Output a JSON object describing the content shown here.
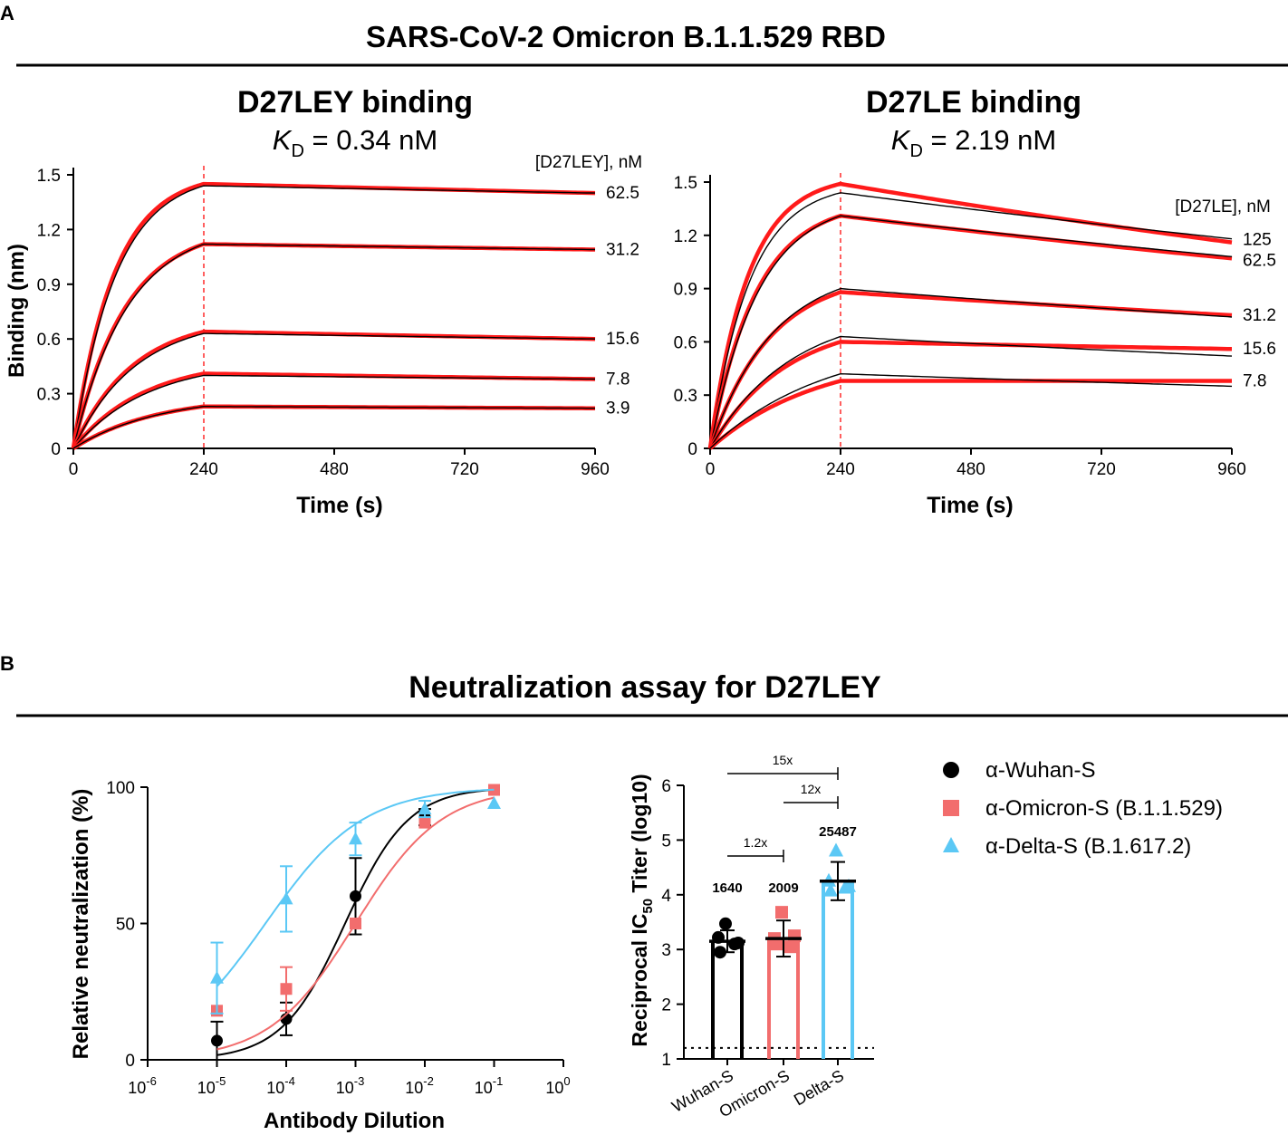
{
  "panel_a": {
    "letter": "A",
    "title": "SARS-CoV-2 Omicron B.1.1.529 RBD"
  },
  "panel_b": {
    "letter": "B",
    "title": "Neutralization assay for D27LEY"
  },
  "colors": {
    "black": "#000000",
    "red_trace": "#ff1a1a",
    "omicron": "#f26d6d",
    "delta": "#5bc8f5",
    "dashed_line": "#ff2a2a"
  },
  "chart_data": [
    {
      "id": "d27ley",
      "type": "line",
      "title": "D27LEY binding",
      "kd_symbol": "K",
      "kd_sub": "D",
      "kd_value": " = 0.34 nM",
      "xlabel": "Time (s)",
      "ylabel": "Binding (nm)",
      "xlim": [
        0,
        960
      ],
      "ylim": [
        0,
        1.5
      ],
      "xticks": [
        0,
        240,
        480,
        720,
        960
      ],
      "yticks": [
        0,
        0.3,
        0.6,
        0.9,
        1.2,
        1.5
      ],
      "ytick_labels": [
        "0",
        "0.3",
        "0.6",
        "0.9",
        "1.2",
        "1.5"
      ],
      "association_end": 240,
      "concentration_header": "[D27LEY],  nM",
      "series": [
        {
          "label": "62.5",
          "peak_measured": 1.45,
          "end_measured": 1.4,
          "peak_fit": 1.44,
          "end_fit": 1.4,
          "tau": 75
        },
        {
          "label": "31.2",
          "peak_measured": 1.12,
          "end_measured": 1.09,
          "peak_fit": 1.12,
          "end_fit": 1.09,
          "tau": 95
        },
        {
          "label": "15.6",
          "peak_measured": 0.64,
          "end_measured": 0.6,
          "peak_fit": 0.63,
          "end_fit": 0.6,
          "tau": 110
        },
        {
          "label": "7.8",
          "peak_measured": 0.41,
          "end_measured": 0.38,
          "peak_fit": 0.4,
          "end_fit": 0.38,
          "tau": 130
        },
        {
          "label": "3.9",
          "peak_measured": 0.23,
          "end_measured": 0.22,
          "peak_fit": 0.23,
          "end_fit": 0.22,
          "tau": 150
        }
      ]
    },
    {
      "id": "d27le",
      "type": "line",
      "title": "D27LE binding",
      "kd_symbol": "K",
      "kd_sub": "D",
      "kd_value": " = 2.19 nM",
      "xlabel": "Time (s)",
      "ylabel": "",
      "xlim": [
        0,
        960
      ],
      "ylim": [
        0,
        1.5
      ],
      "xticks": [
        0,
        240,
        480,
        720,
        960
      ],
      "yticks": [
        0,
        0.3,
        0.6,
        0.9,
        1.2,
        1.5
      ],
      "ytick_labels": [
        "0",
        "0.3",
        "0.6",
        "0.9",
        "1.2",
        "1.5"
      ],
      "association_end": 240,
      "concentration_header": "[D27LE],  nM",
      "series": [
        {
          "label": "125",
          "peak_measured": 1.49,
          "end_measured": 1.16,
          "peak_fit": 1.44,
          "end_fit": 1.18,
          "tau": 70
        },
        {
          "label": "62.5",
          "peak_measured": 1.31,
          "end_measured": 1.07,
          "peak_fit": 1.31,
          "end_fit": 1.08,
          "tau": 85
        },
        {
          "label": "31.2",
          "peak_measured": 0.88,
          "end_measured": 0.75,
          "peak_fit": 0.9,
          "end_fit": 0.74,
          "tau": 110
        },
        {
          "label": "15.6",
          "peak_measured": 0.6,
          "end_measured": 0.56,
          "peak_fit": 0.63,
          "end_fit": 0.52,
          "tau": 140
        },
        {
          "label": "7.8",
          "peak_measured": 0.38,
          "end_measured": 0.38,
          "peak_fit": 0.42,
          "end_fit": 0.35,
          "tau": 200
        }
      ]
    },
    {
      "id": "neutralization",
      "type": "scatter",
      "title": "",
      "xlabel": "Antibody Dilution",
      "ylabel": "Relative neutralization (%)",
      "xscale": "log10",
      "xlim": [
        -6,
        0
      ],
      "ylim": [
        0,
        100
      ],
      "xtick_exponents": [
        "-6",
        "-5",
        "-4",
        "-3",
        "-2",
        "-1",
        "0"
      ],
      "xtick_base": "10",
      "yticks": [
        0,
        50,
        100
      ],
      "legend_position": "right",
      "series": [
        {
          "name": "α-Wuhan-S",
          "color_key": "black",
          "marker": "circle",
          "x": [
            -5,
            -4,
            -3,
            -2
          ],
          "y": [
            7,
            15,
            60,
            89
          ],
          "err": [
            7,
            6,
            14,
            3
          ],
          "fit": {
            "ic50_log": -3.15,
            "hill": 0.95
          }
        },
        {
          "name": "α-Omicron-S (B.1.1.529)",
          "color_key": "omicron",
          "marker": "square",
          "x": [
            -5,
            -4,
            -3,
            -2,
            -1
          ],
          "y": [
            18,
            26,
            50,
            87,
            99
          ],
          "err": [
            0,
            8,
            0,
            0,
            0
          ],
          "fit": {
            "ic50_log": -3.0,
            "hill": 0.7
          }
        },
        {
          "name": "α-Delta-S (B.1.617.2)",
          "color_key": "delta",
          "marker": "triangle",
          "x": [
            -5,
            -4,
            -3,
            -2,
            -1
          ],
          "y": [
            30,
            59,
            81,
            92,
            94
          ],
          "err": [
            13,
            12,
            6,
            3,
            0
          ],
          "fit": {
            "ic50_log": -4.3,
            "hill": 0.62
          }
        }
      ]
    },
    {
      "id": "ic50_titer",
      "type": "bar",
      "title": "",
      "xlabel": "",
      "ylabel_prefix": "Reciprocal IC",
      "ylabel_sub": "50",
      "ylabel_suffix": " Titer (log10)",
      "categories": [
        "Wuhan-S",
        "Omicron-S",
        "Delta-S"
      ],
      "ylim": [
        1,
        6
      ],
      "yticks": [
        1,
        2,
        3,
        4,
        5,
        6
      ],
      "means": [
        3.15,
        3.2,
        4.25
      ],
      "sd": [
        0.2,
        0.33,
        0.35
      ],
      "titer_labels": [
        "1640",
        "2009",
        "25487"
      ],
      "points": [
        [
          3.47,
          3.22,
          3.1,
          2.95,
          3.12
        ],
        [
          3.68,
          3.2,
          3.05,
          3.1,
          3.25
        ],
        [
          4.8,
          4.25,
          4.12,
          4.07,
          4.15
        ]
      ],
      "limit_of_detection": 1.2,
      "comparisons": [
        {
          "from": 0,
          "to": 2,
          "label": "15x"
        },
        {
          "from": 1,
          "to": 2,
          "label": "12x"
        },
        {
          "from": 0,
          "to": 1,
          "label": "1.2x"
        }
      ]
    }
  ]
}
